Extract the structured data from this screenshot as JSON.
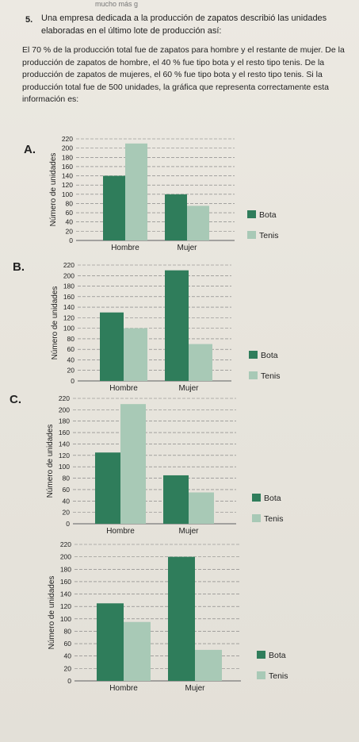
{
  "page": {
    "fragment": "mucho más g",
    "question_number": "5.",
    "question_head": "Una empresa dedicada a la producción de zapatos describió las unidades elaboradas en el último lote de producción así:",
    "question_body": "El 70 % de la producción total fue de zapatos para hombre y el restante de mujer. De la producción de zapatos de hombre, el 40 % fue tipo bota y el resto tipo tenis. De la producción de zapatos de mujeres, el 60 % fue tipo bota y el resto tipo tenis. Si la producción total fue de 500 unidades, la gráfica que representa correctamente esta información es:"
  },
  "colors": {
    "bota": "#2f7d5b",
    "tenis": "#a8c9b6",
    "grid": "#7a7a7a"
  },
  "chart_data": [
    {
      "option": "A.",
      "type": "bar",
      "categories": [
        "Hombre",
        "Mujer"
      ],
      "series": [
        {
          "name": "Bota",
          "values": [
            140,
            100
          ]
        },
        {
          "name": "Tenis",
          "values": [
            210,
            75
          ]
        }
      ],
      "ylabel": "Número de unidades",
      "yticks": [
        0,
        20,
        40,
        60,
        80,
        100,
        120,
        140,
        160,
        180,
        200,
        220
      ],
      "ylim": [
        0,
        220
      ],
      "legend": "right",
      "grid": true
    },
    {
      "option": "B.",
      "type": "bar",
      "categories": [
        "Hombre",
        "Mujer"
      ],
      "series": [
        {
          "name": "Bota",
          "values": [
            130,
            210
          ]
        },
        {
          "name": "Tenis",
          "values": [
            100,
            70
          ]
        }
      ],
      "ylabel": "Número de unidades",
      "yticks": [
        0,
        20,
        40,
        60,
        80,
        100,
        120,
        140,
        160,
        180,
        200,
        220
      ],
      "ylim": [
        0,
        220
      ],
      "legend": "right",
      "grid": true
    },
    {
      "option": "C.",
      "type": "bar",
      "categories": [
        "Hombre",
        "Mujer"
      ],
      "series": [
        {
          "name": "Bota",
          "values": [
            125,
            85
          ]
        },
        {
          "name": "Tenis",
          "values": [
            210,
            55
          ]
        }
      ],
      "ylabel": "Número de unidades",
      "yticks": [
        0,
        20,
        40,
        60,
        80,
        100,
        120,
        140,
        160,
        180,
        200,
        220
      ],
      "ylim": [
        0,
        220
      ],
      "legend": "right",
      "grid": true
    },
    {
      "option": "",
      "type": "bar",
      "categories": [
        "Hombre",
        "Mujer"
      ],
      "series": [
        {
          "name": "Bota",
          "values": [
            125,
            200
          ]
        },
        {
          "name": "Tenis",
          "values": [
            95,
            50
          ]
        }
      ],
      "ylabel": "Número de unidades",
      "yticks": [
        0,
        20,
        40,
        60,
        80,
        100,
        120,
        140,
        160,
        180,
        200,
        220
      ],
      "ylim": [
        0,
        220
      ],
      "legend": "right",
      "grid": true
    }
  ]
}
